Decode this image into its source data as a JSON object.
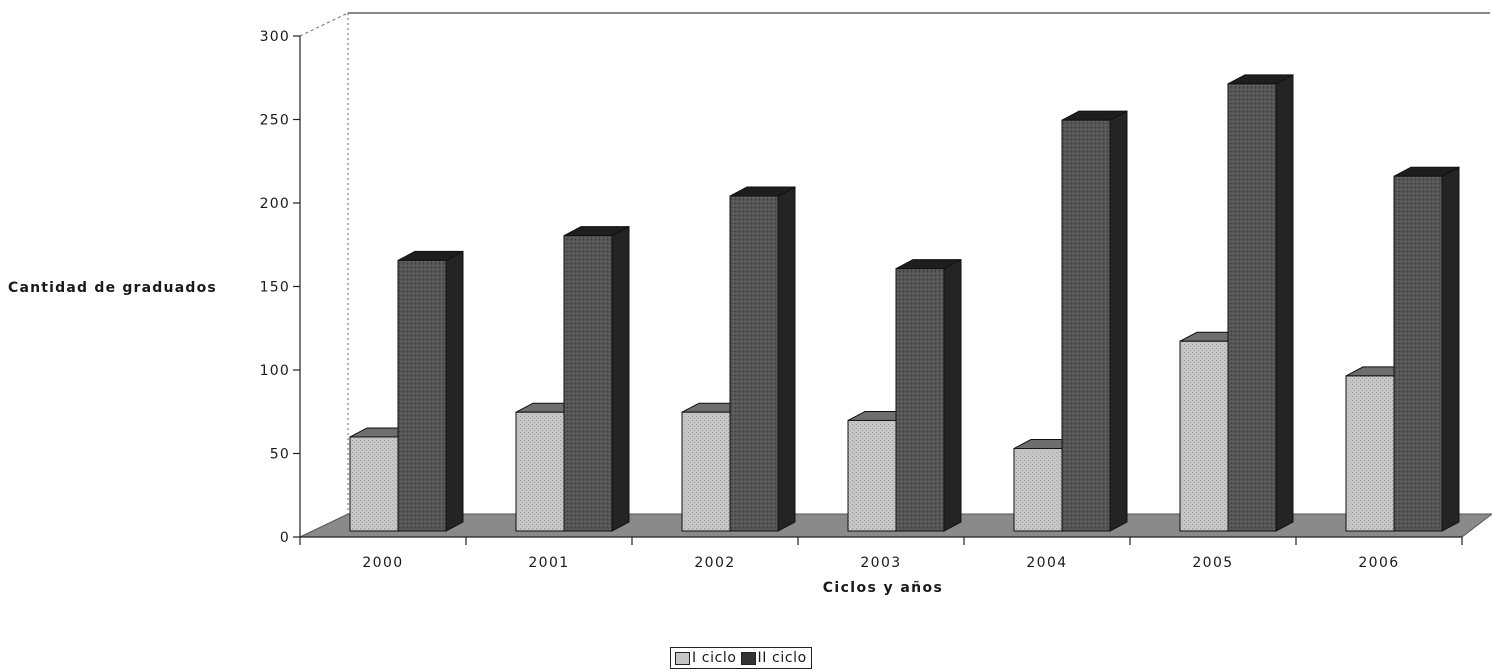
{
  "chart_data": {
    "type": "bar",
    "categories": [
      "2000",
      "2001",
      "2002",
      "2003",
      "2004",
      "2005",
      "2006"
    ],
    "series": [
      {
        "name": "I ciclo",
        "values": [
          57,
          72,
          72,
          67,
          50,
          115,
          94
        ]
      },
      {
        "name": "II ciclo",
        "values": [
          164,
          179,
          203,
          159,
          249,
          271,
          215
        ]
      }
    ],
    "xlabel": "Ciclos y años",
    "ylabel": "Cantidad de graduados",
    "ylim": [
      0,
      300
    ],
    "yticks": [
      "0",
      "50",
      "100",
      "150",
      "200",
      "250",
      "300"
    ],
    "grid": false,
    "legend_position": "bottom",
    "three_d": true,
    "colors": {
      "series_1": "#c4c4c4",
      "series_2": "#4a4a4a",
      "floor": "#8a8a8a"
    }
  }
}
